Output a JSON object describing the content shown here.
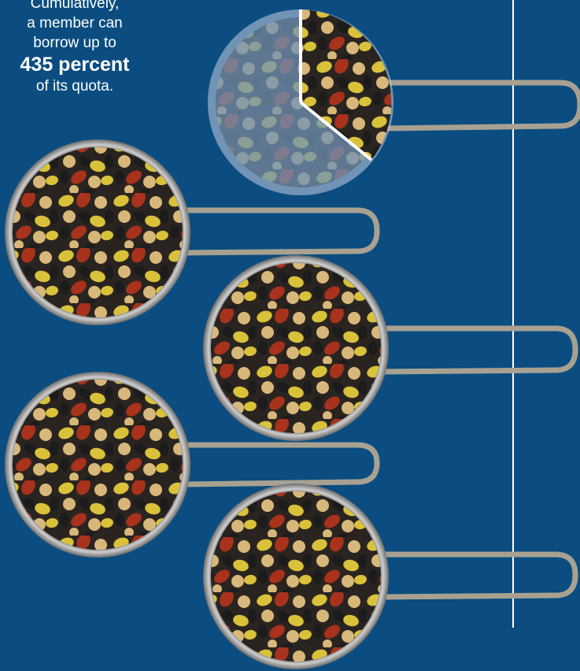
{
  "caption": {
    "line1": "Cumulatively,",
    "line2": "a member can",
    "line3": "borrow up to",
    "highlight": "435 percent",
    "line5": "of its quota."
  },
  "colors": {
    "background": "#0b4d80",
    "text": "#ffffff",
    "handle": "#a8a192",
    "bean_yellow": "#d9c23a",
    "bean_red": "#a8321c",
    "bean_black": "#1c1c1c",
    "chickpea": "#d8b87a"
  },
  "illustration": {
    "full_scoops": 4,
    "partial_scoop_fraction": 0.35
  }
}
